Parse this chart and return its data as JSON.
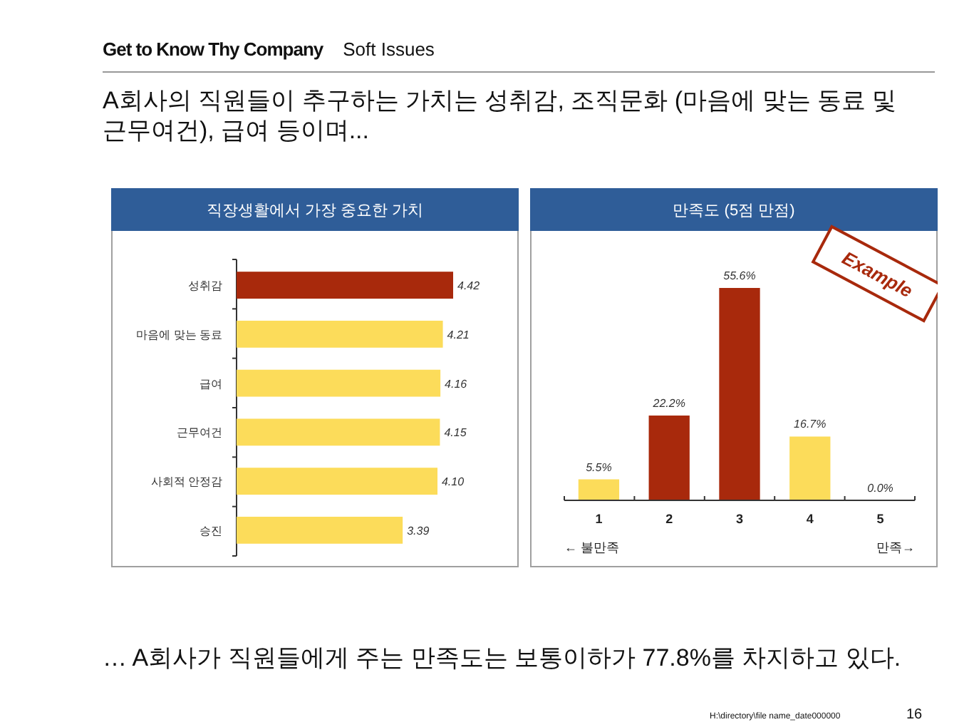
{
  "chart_data": [
    {
      "type": "bar",
      "orientation": "horizontal",
      "title": "직장생활에서 가장 중요한 가치",
      "categories": [
        "성취감",
        "마음에 맞는 동료",
        "급여",
        "근무여건",
        "사회적 안정감",
        "승진"
      ],
      "values": [
        4.42,
        4.21,
        4.16,
        4.15,
        4.1,
        3.39
      ],
      "colors": [
        "#a8290c",
        "#fcdc5a",
        "#fcdc5a",
        "#fcdc5a",
        "#fcdc5a",
        "#fcdc5a"
      ],
      "value_labels": [
        "4.42",
        "4.21",
        "4.16",
        "4.15",
        "4.10",
        "3.39"
      ],
      "tick_labels": "y",
      "annotations": [
        "Get to Know Thy Company",
        "Soft Issues",
        "A회사의 직원들이 추구하는 가치는 성취감, 조직문화 (마음에 맞는 동료 및 근무여건), 급여 등이며..."
      ]
    },
    {
      "type": "bar",
      "title": "만족도 (5점 만점)",
      "categories": [
        "1",
        "2",
        "3",
        "4",
        "5"
      ],
      "values": [
        5.5,
        22.2,
        55.6,
        16.7,
        0.0
      ],
      "colors": [
        "#fcdc5a",
        "#a8290c",
        "#a8290c",
        "#fcdc5a",
        "#fcdc5a"
      ],
      "value_labels": [
        "5.5%",
        "22.2%",
        "55.6%",
        "16.7%",
        "0.0%"
      ],
      "tick_labels": "x",
      "annotations": [
        "← 불만족",
        "만족→",
        "Example",
        "… A회사가 직원들에게 주는 만족도는 보통이하가 77.8%를 차지하고 있다.",
        "H:\\directory\\file name_date000000",
        "16"
      ]
    }
  ]
}
